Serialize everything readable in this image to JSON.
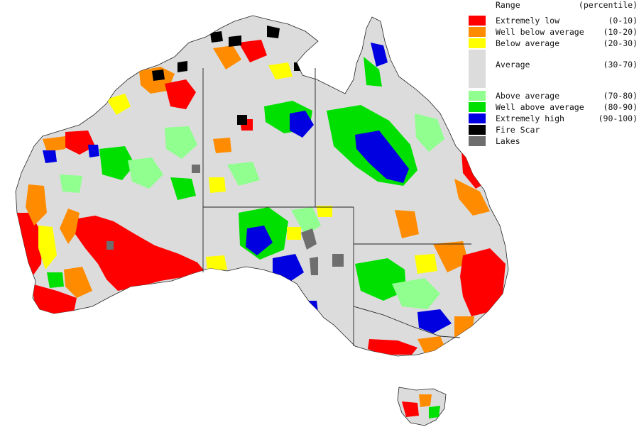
{
  "legend": {
    "header_label": "Range",
    "header_units": "(percentile)",
    "items": [
      {
        "label": "Extremely low",
        "range": "(0-10)",
        "color": "#ff0000"
      },
      {
        "label": "Well below average",
        "range": "(10-20)",
        "color": "#ff8c00"
      },
      {
        "label": "Below average",
        "range": "(20-30)",
        "color": "#ffff00"
      },
      {
        "label": "Average",
        "range": "(30-70)",
        "color": "#dcdcdc"
      },
      {
        "label": "Above average",
        "range": "(70-80)",
        "color": "#90ff90"
      },
      {
        "label": "Well above average",
        "range": "(80-90)",
        "color": "#00e000"
      },
      {
        "label": "Extremely high",
        "range": "(90-100)",
        "color": "#0000e0"
      },
      {
        "label": "Fire Scar",
        "range": "",
        "color": "#000000"
      },
      {
        "label": "Lakes",
        "range": "",
        "color": "#6e6e6e"
      }
    ]
  }
}
